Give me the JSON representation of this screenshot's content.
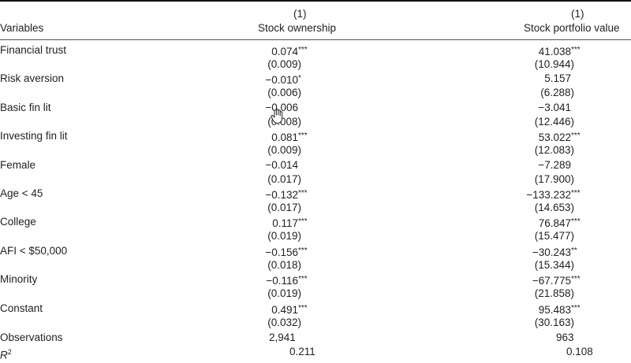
{
  "header": {
    "variables": "Variables",
    "col1_num": "(1)",
    "col1_name": "Stock ownership",
    "col2_num": "(1)",
    "col2_name": "Stock portfolio value"
  },
  "rows": [
    {
      "label": "Financial trust",
      "c1": "0.074",
      "c1s": "***",
      "c1se": "(0.009)",
      "c2": "41.038",
      "c2s": "***",
      "c2se": "(10.944)"
    },
    {
      "label": "Risk aversion",
      "c1": "−0.010",
      "c1s": "*",
      "c1se": "(0.006)",
      "c2": "5.157",
      "c2s": "",
      "c2se": "(6.288)"
    },
    {
      "label": "Basic fin lit",
      "c1": "−0.006",
      "c1s": "",
      "c1se": "(0.008)",
      "c2": "−3.041",
      "c2s": "",
      "c2se": "(12.446)"
    },
    {
      "label": "Investing fin lit",
      "c1": "0.081",
      "c1s": "***",
      "c1se": "(0.009)",
      "c2": "53.022",
      "c2s": "***",
      "c2se": "(12.083)"
    },
    {
      "label": "Female",
      "c1": "−0.014",
      "c1s": "",
      "c1se": "(0.017)",
      "c2": "−7.289",
      "c2s": "",
      "c2se": "(17.900)"
    },
    {
      "label": "Age < 45",
      "c1": "−0.132",
      "c1s": "***",
      "c1se": "(0.017)",
      "c2": "−133.232",
      "c2s": "***",
      "c2se": "(14.653)"
    },
    {
      "label": "College",
      "c1": "0.117",
      "c1s": "***",
      "c1se": "(0.019)",
      "c2": "76.847",
      "c2s": "***",
      "c2se": "(15.477)"
    },
    {
      "label": "AFI < $50,000",
      "c1": "−0.156",
      "c1s": "***",
      "c1se": "(0.018)",
      "c2": "−30.243",
      "c2s": "**",
      "c2se": "(15.344)"
    },
    {
      "label": "Minority",
      "c1": "−0.116",
      "c1s": "***",
      "c1se": "(0.019)",
      "c2": "−67.775",
      "c2s": "***",
      "c2se": "(21.858)"
    },
    {
      "label": "Constant",
      "c1": "0.491",
      "c1s": "***",
      "c1se": "(0.032)",
      "c2": "95.483",
      "c2s": "***",
      "c2se": "(30.163)"
    }
  ],
  "footer": {
    "obs_label": "Observations",
    "obs_c1": "2,941",
    "obs_c2": "963",
    "r2_label": "R",
    "r2_sup": "2",
    "r2_c1": "0.211",
    "r2_c2": "0.108"
  },
  "icons": {
    "cursor": "hand-cursor-icon"
  }
}
